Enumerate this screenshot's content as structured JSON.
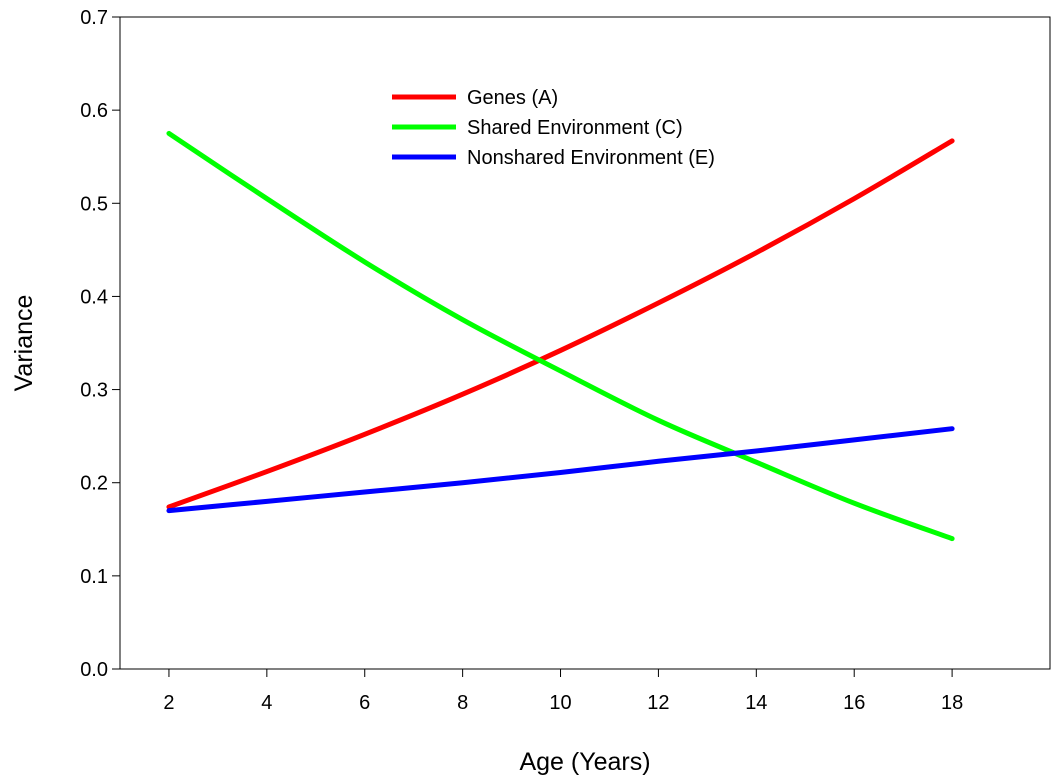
{
  "chart_data": {
    "type": "line",
    "title": "",
    "xlabel": "Age (Years)",
    "ylabel": "Variance",
    "xlim": [
      1,
      20
    ],
    "ylim": [
      0,
      0.7
    ],
    "xticks": [
      2,
      4,
      6,
      8,
      10,
      12,
      14,
      16,
      18
    ],
    "yticks": [
      "0.0",
      "0.1",
      "0.2",
      "0.3",
      "0.4",
      "0.5",
      "0.6",
      "0.7"
    ],
    "grid": false,
    "legend_position": "top-center",
    "series": [
      {
        "name": "Genes (A)",
        "color": "#ff0000",
        "x": [
          2,
          4,
          6,
          8,
          10,
          12,
          14,
          16,
          18
        ],
        "y": [
          0.174,
          0.212,
          0.252,
          0.295,
          0.342,
          0.393,
          0.447,
          0.505,
          0.567
        ]
      },
      {
        "name": "Shared Environment (C)",
        "color": "#00ff00",
        "x": [
          2,
          4,
          6,
          8,
          10,
          12,
          14,
          16,
          18
        ],
        "y": [
          0.575,
          0.505,
          0.437,
          0.375,
          0.32,
          0.267,
          0.222,
          0.178,
          0.14
        ]
      },
      {
        "name": "Nonshared Environment (E)",
        "color": "#0000ff",
        "x": [
          2,
          4,
          6,
          8,
          10,
          12,
          14,
          16,
          18
        ],
        "y": [
          0.17,
          0.18,
          0.19,
          0.2,
          0.211,
          0.223,
          0.234,
          0.246,
          0.258
        ]
      }
    ]
  }
}
